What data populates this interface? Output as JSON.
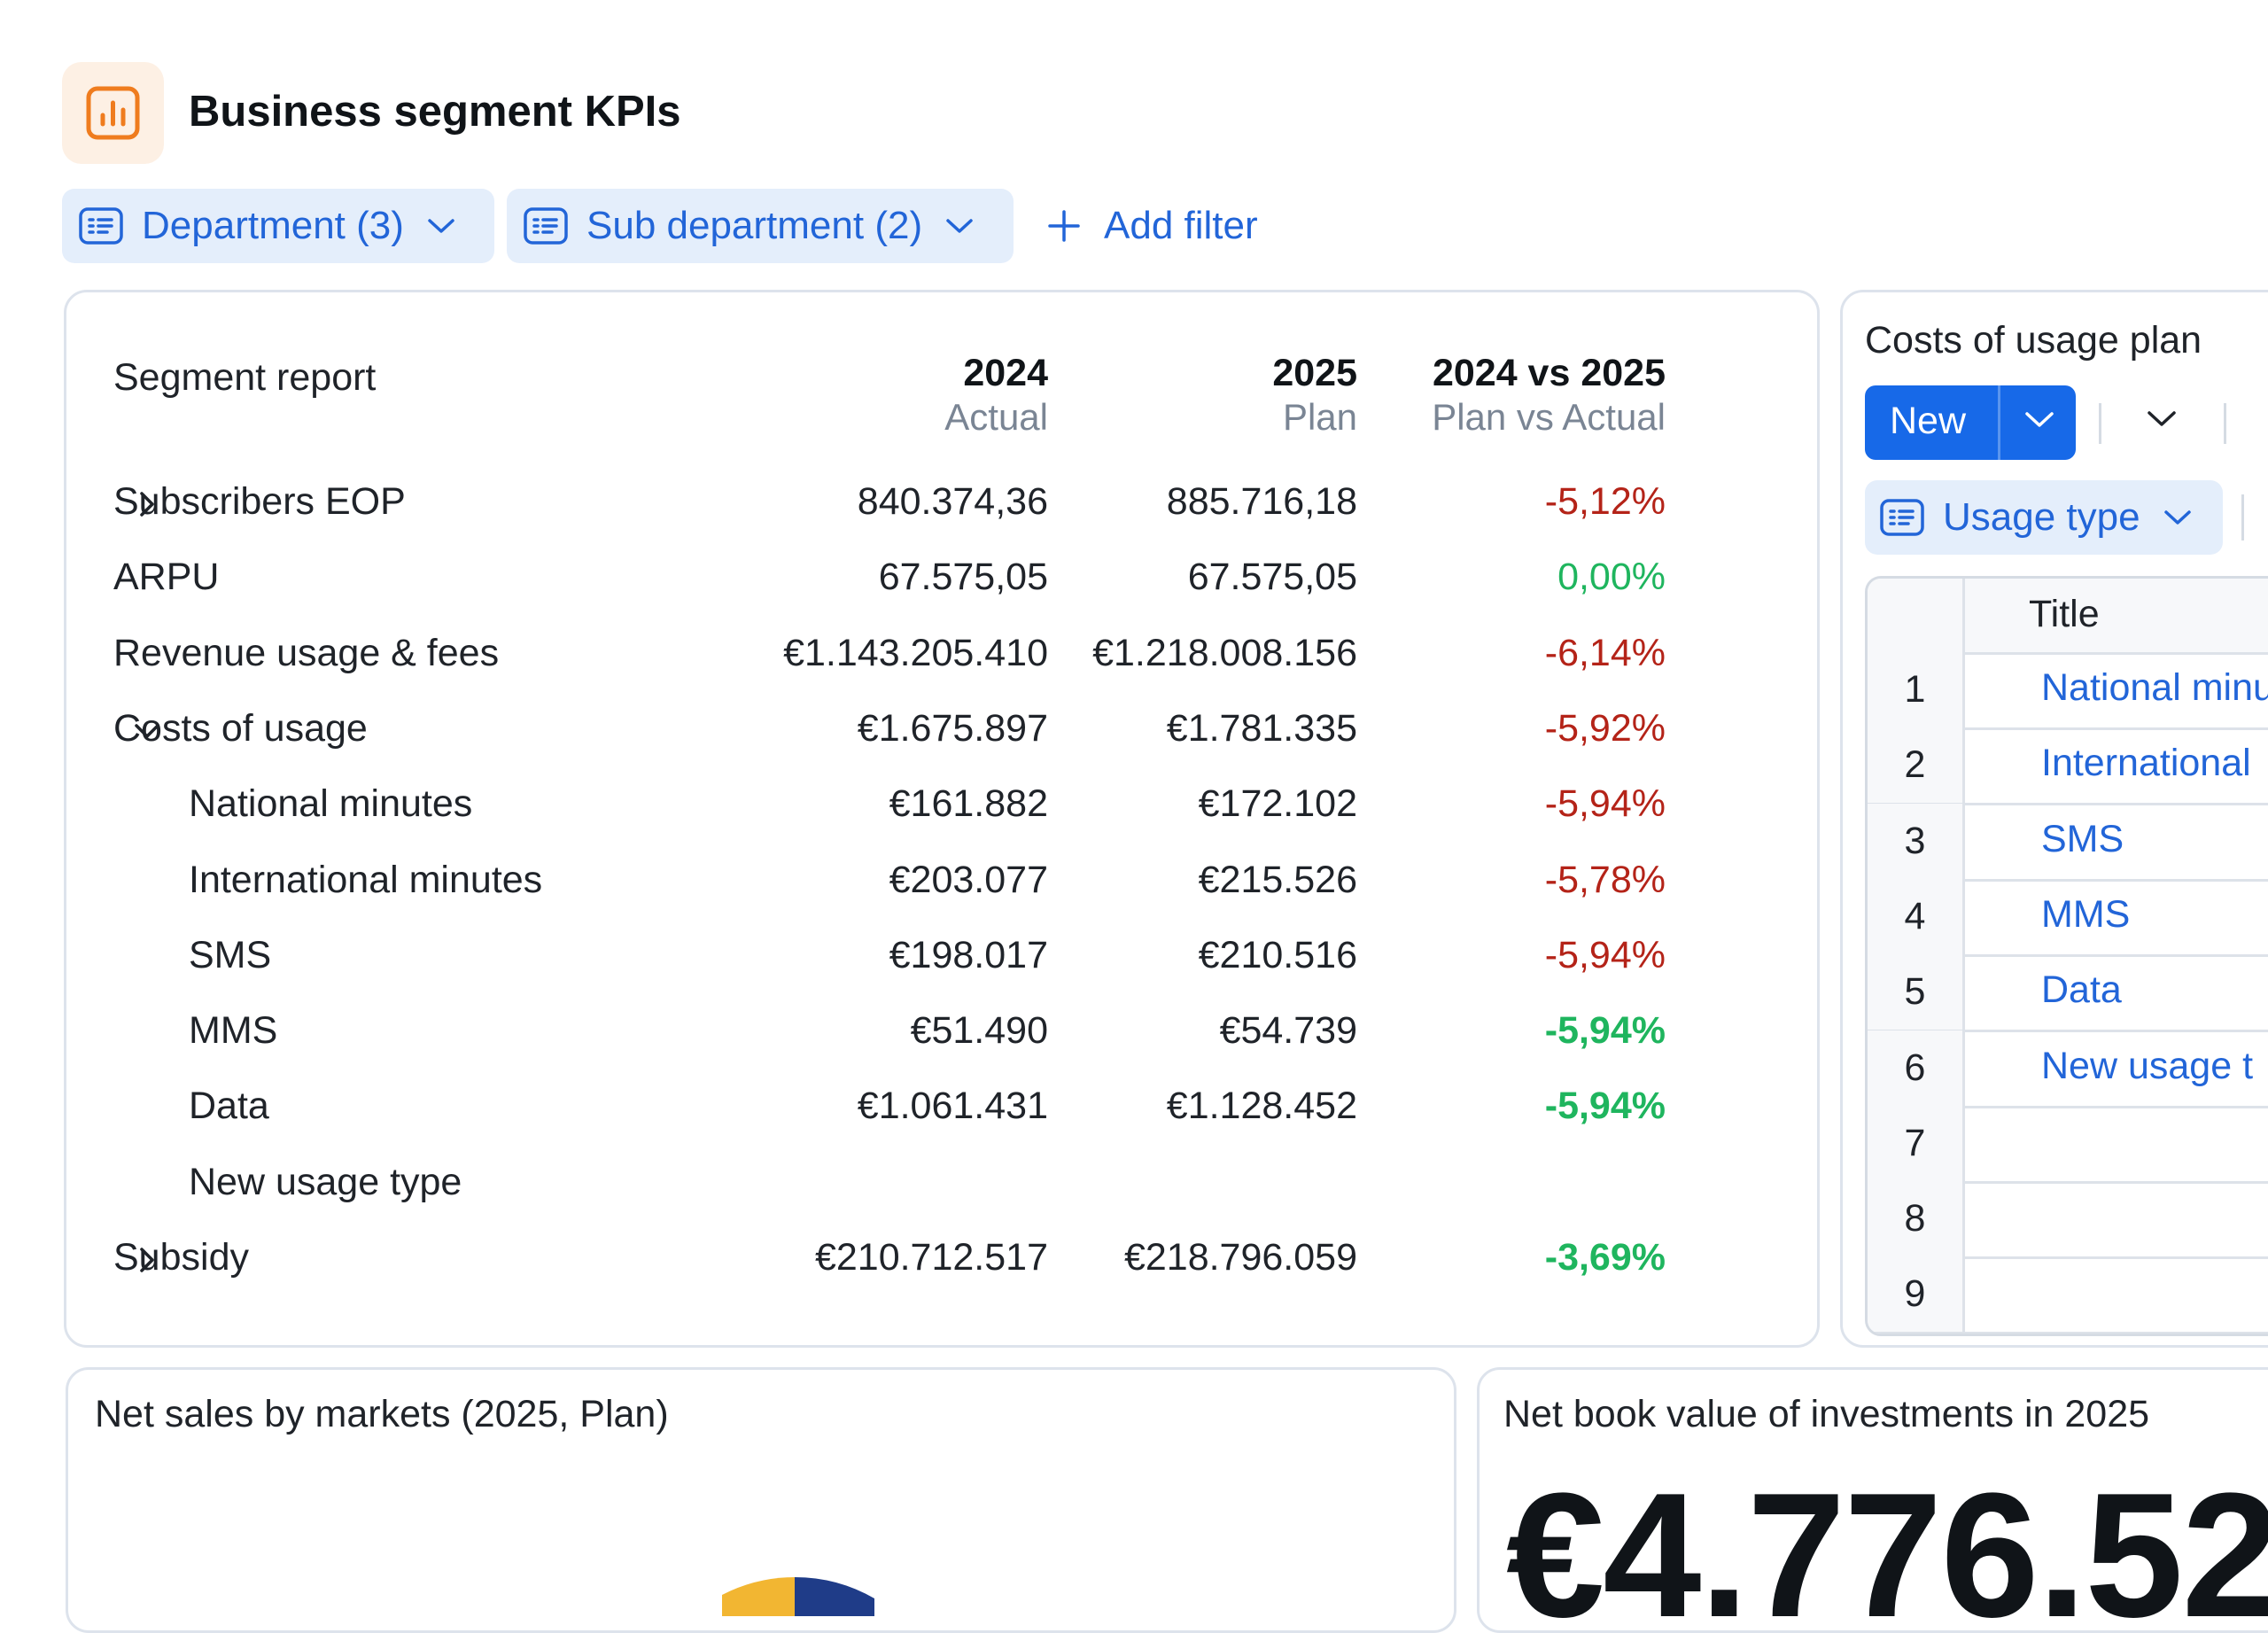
{
  "header": {
    "title": "Business segment KPIs",
    "icon": "bar-chart-icon"
  },
  "filters": {
    "department": "Department (3)",
    "sub_department": "Sub department (2)",
    "add_filter": "Add filter"
  },
  "segment_report": {
    "title": "Segment report",
    "columns": [
      {
        "year": "2024",
        "sub": "Actual"
      },
      {
        "year": "2025",
        "sub": "Plan"
      },
      {
        "year": "2024 vs 2025",
        "sub": "Plan vs Actual"
      }
    ],
    "rows": [
      {
        "name": "Subscribers EOP",
        "expand": "collapsed",
        "v2024": "840.374,36",
        "v2025": "885.716,18",
        "diff": "-5,12%",
        "diff_style": "neg"
      },
      {
        "name": "ARPU",
        "v2024": "67.575,05",
        "v2025": "67.575,05",
        "diff": "0,00%",
        "diff_style": "pos"
      },
      {
        "name": "Revenue usage & fees",
        "v2024": "€1.143.205.410",
        "v2025": "€1.218.008.156",
        "diff": "-6,14%",
        "diff_style": "neg"
      },
      {
        "name": "Costs of usage",
        "expand": "expanded",
        "v2024": "€1.675.897",
        "v2025": "€1.781.335",
        "diff": "-5,92%",
        "diff_style": "neg"
      },
      {
        "name": "National minutes",
        "indent": 1,
        "v2024": "€161.882",
        "v2025": "€172.102",
        "diff": "-5,94%",
        "diff_style": "neg"
      },
      {
        "name": "International minutes",
        "indent": 1,
        "v2024": "€203.077",
        "v2025": "€215.526",
        "diff": "-5,78%",
        "diff_style": "neg"
      },
      {
        "name": "SMS",
        "indent": 1,
        "v2024": "€198.017",
        "v2025": "€210.516",
        "diff": "-5,94%",
        "diff_style": "neg"
      },
      {
        "name": "MMS",
        "indent": 1,
        "v2024": "€51.490",
        "v2025": "€54.739",
        "diff": "-5,94%",
        "diff_style": "pos-bold"
      },
      {
        "name": "Data",
        "indent": 1,
        "v2024": "€1.061.431",
        "v2025": "€1.128.452",
        "diff": "-5,94%",
        "diff_style": "pos-bold"
      },
      {
        "name": "New usage type",
        "indent": 1,
        "v2024": "",
        "v2025": "",
        "diff": "",
        "diff_style": ""
      },
      {
        "name": "Subsidy",
        "expand": "collapsed",
        "v2024": "€210.712.517",
        "v2025": "€218.796.059",
        "diff": "-3,69%",
        "diff_style": "pos-bold"
      }
    ]
  },
  "costs_plan": {
    "title": "Costs of usage plan",
    "new_button": "New",
    "usage_filter": "Usage type",
    "column_title": "Title",
    "rows": [
      {
        "n": "1",
        "title": "National minu"
      },
      {
        "n": "2",
        "title": "International"
      },
      {
        "n": "3",
        "title": "SMS"
      },
      {
        "n": "4",
        "title": "MMS"
      },
      {
        "n": "5",
        "title": "Data"
      },
      {
        "n": "6",
        "title": "New usage t"
      },
      {
        "n": "7",
        "title": ""
      },
      {
        "n": "8",
        "title": ""
      },
      {
        "n": "9",
        "title": ""
      }
    ]
  },
  "net_sales": {
    "title": "Net sales by markets (2025, Plan)",
    "colors": [
      "#f2b632",
      "#1f3c88"
    ]
  },
  "book_value": {
    "title": "Net book value of investments in 2025",
    "value": "€4.776.52"
  },
  "colors": {
    "accent": "#1769e8",
    "chip_bg": "#e4eefb",
    "chip_text": "#2265d8",
    "negative": "#b42318",
    "positive": "#1fb55e",
    "icon_bg": "#fdf0e4",
    "icon_stroke": "#ef7c1e"
  }
}
